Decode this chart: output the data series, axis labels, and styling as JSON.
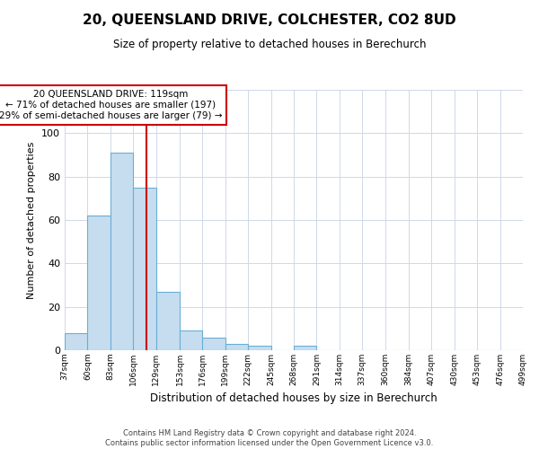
{
  "title": "20, QUEENSLAND DRIVE, COLCHESTER, CO2 8UD",
  "subtitle": "Size of property relative to detached houses in Berechurch",
  "xlabel": "Distribution of detached houses by size in Berechurch",
  "ylabel": "Number of detached properties",
  "bin_edges": [
    37,
    60,
    83,
    106,
    129,
    153,
    176,
    199,
    222,
    245,
    268,
    291,
    314,
    337,
    360,
    384,
    407,
    430,
    453,
    476,
    499
  ],
  "bar_heights": [
    8,
    62,
    91,
    75,
    27,
    9,
    6,
    3,
    2,
    0,
    2,
    0,
    0,
    0,
    0,
    0,
    0,
    0,
    0,
    0
  ],
  "bar_color": "#c6ddf0",
  "bar_edge_color": "#6aaed6",
  "vline_x": 119,
  "vline_color": "#cc0000",
  "annotation_title": "20 QUEENSLAND DRIVE: 119sqm",
  "annotation_line1": "← 71% of detached houses are smaller (197)",
  "annotation_line2": "29% of semi-detached houses are larger (79) →",
  "annotation_box_edge_color": "#cc0000",
  "ylim": [
    0,
    120
  ],
  "yticks": [
    0,
    20,
    40,
    60,
    80,
    100,
    120
  ],
  "tick_labels": [
    "37sqm",
    "60sqm",
    "83sqm",
    "106sqm",
    "129sqm",
    "153sqm",
    "176sqm",
    "199sqm",
    "222sqm",
    "245sqm",
    "268sqm",
    "291sqm",
    "314sqm",
    "337sqm",
    "360sqm",
    "384sqm",
    "407sqm",
    "430sqm",
    "453sqm",
    "476sqm",
    "499sqm"
  ],
  "footer_line1": "Contains HM Land Registry data © Crown copyright and database right 2024.",
  "footer_line2": "Contains public sector information licensed under the Open Government Licence v3.0.",
  "background_color": "#ffffff",
  "grid_color": "#d0d8e8"
}
